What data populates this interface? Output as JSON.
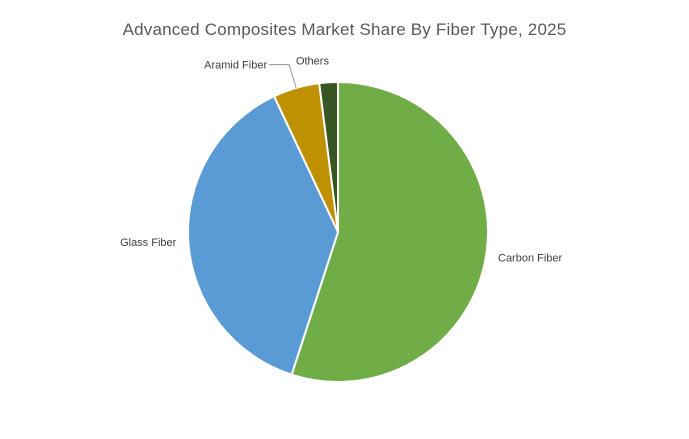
{
  "chart_data": {
    "type": "pie",
    "title": "Advanced Composites Market Share By Fiber Type, 2025",
    "categories": [
      "Carbon Fiber",
      "Glass Fiber",
      "Aramid Fiber",
      "Others"
    ],
    "values": [
      55,
      38,
      5,
      2
    ],
    "colors": [
      "#70ad47",
      "#5b9bd5",
      "#bf9000",
      "#375623"
    ],
    "start_angle_deg": 0,
    "direction": "clockwise",
    "legend": "none",
    "labels": "category names outside slices"
  }
}
